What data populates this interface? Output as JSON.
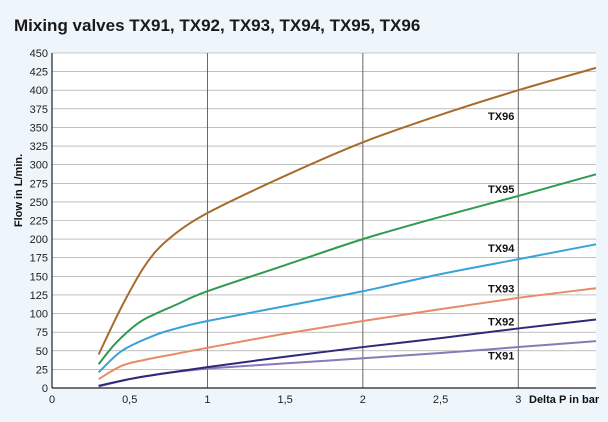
{
  "chart_data": {
    "type": "line",
    "title": "Mixing valves  TX91, TX92, TX93, TX94, TX95, TX96",
    "xlabel": "Delta P in bar",
    "ylabel": "Flow in L/min.",
    "xlim": [
      0,
      3.5
    ],
    "ylim": [
      0,
      450
    ],
    "x_ticks": [
      "0",
      "0,5",
      "1",
      "1,5",
      "2",
      "2,5",
      "3"
    ],
    "y_ticks": [
      "0",
      "25",
      "50",
      "75",
      "100",
      "125",
      "150",
      "175",
      "200",
      "225",
      "250",
      "275",
      "300",
      "325",
      "350",
      "375",
      "400",
      "425",
      "450"
    ],
    "grid": true,
    "series": [
      {
        "name": "TX91",
        "color": "#8a78b8",
        "points": [
          [
            0.3,
            2
          ],
          [
            0.5,
            12
          ],
          [
            0.7,
            19
          ],
          [
            1,
            26
          ],
          [
            1.5,
            33
          ],
          [
            2,
            40
          ],
          [
            2.5,
            47
          ],
          [
            3,
            55
          ],
          [
            3.5,
            63
          ]
        ]
      },
      {
        "name": "TX92",
        "color": "#2d2a78",
        "points": [
          [
            0.3,
            3
          ],
          [
            0.5,
            12
          ],
          [
            0.7,
            19
          ],
          [
            1,
            28
          ],
          [
            1.5,
            42
          ],
          [
            2,
            55
          ],
          [
            2.5,
            67
          ],
          [
            3,
            80
          ],
          [
            3.5,
            92
          ]
        ]
      },
      {
        "name": "TX93",
        "color": "#e88a6a",
        "points": [
          [
            0.3,
            12
          ],
          [
            0.45,
            30
          ],
          [
            0.6,
            38
          ],
          [
            0.8,
            46
          ],
          [
            1,
            54
          ],
          [
            1.5,
            73
          ],
          [
            2,
            90
          ],
          [
            2.5,
            106
          ],
          [
            3,
            121
          ],
          [
            3.5,
            134
          ]
        ]
      },
      {
        "name": "TX94",
        "color": "#3aa2d6",
        "points": [
          [
            0.3,
            21
          ],
          [
            0.45,
            50
          ],
          [
            0.65,
            70
          ],
          [
            0.8,
            80
          ],
          [
            1,
            90
          ],
          [
            1.5,
            110
          ],
          [
            2,
            130
          ],
          [
            2.5,
            153
          ],
          [
            3,
            173
          ],
          [
            3.5,
            193
          ]
        ]
      },
      {
        "name": "TX95",
        "color": "#2e9a52",
        "points": [
          [
            0.3,
            32
          ],
          [
            0.4,
            58
          ],
          [
            0.5,
            78
          ],
          [
            0.6,
            93
          ],
          [
            0.8,
            112
          ],
          [
            1,
            130
          ],
          [
            1.5,
            165
          ],
          [
            2,
            200
          ],
          [
            2.5,
            230
          ],
          [
            3,
            258
          ],
          [
            3.5,
            287
          ]
        ]
      },
      {
        "name": "TX96",
        "color": "#a86b2c",
        "points": [
          [
            0.3,
            45
          ],
          [
            0.45,
            110
          ],
          [
            0.6,
            165
          ],
          [
            0.75,
            200
          ],
          [
            1,
            235
          ],
          [
            1.5,
            285
          ],
          [
            2,
            330
          ],
          [
            2.5,
            367
          ],
          [
            3,
            400
          ],
          [
            3.5,
            430
          ]
        ]
      }
    ]
  }
}
